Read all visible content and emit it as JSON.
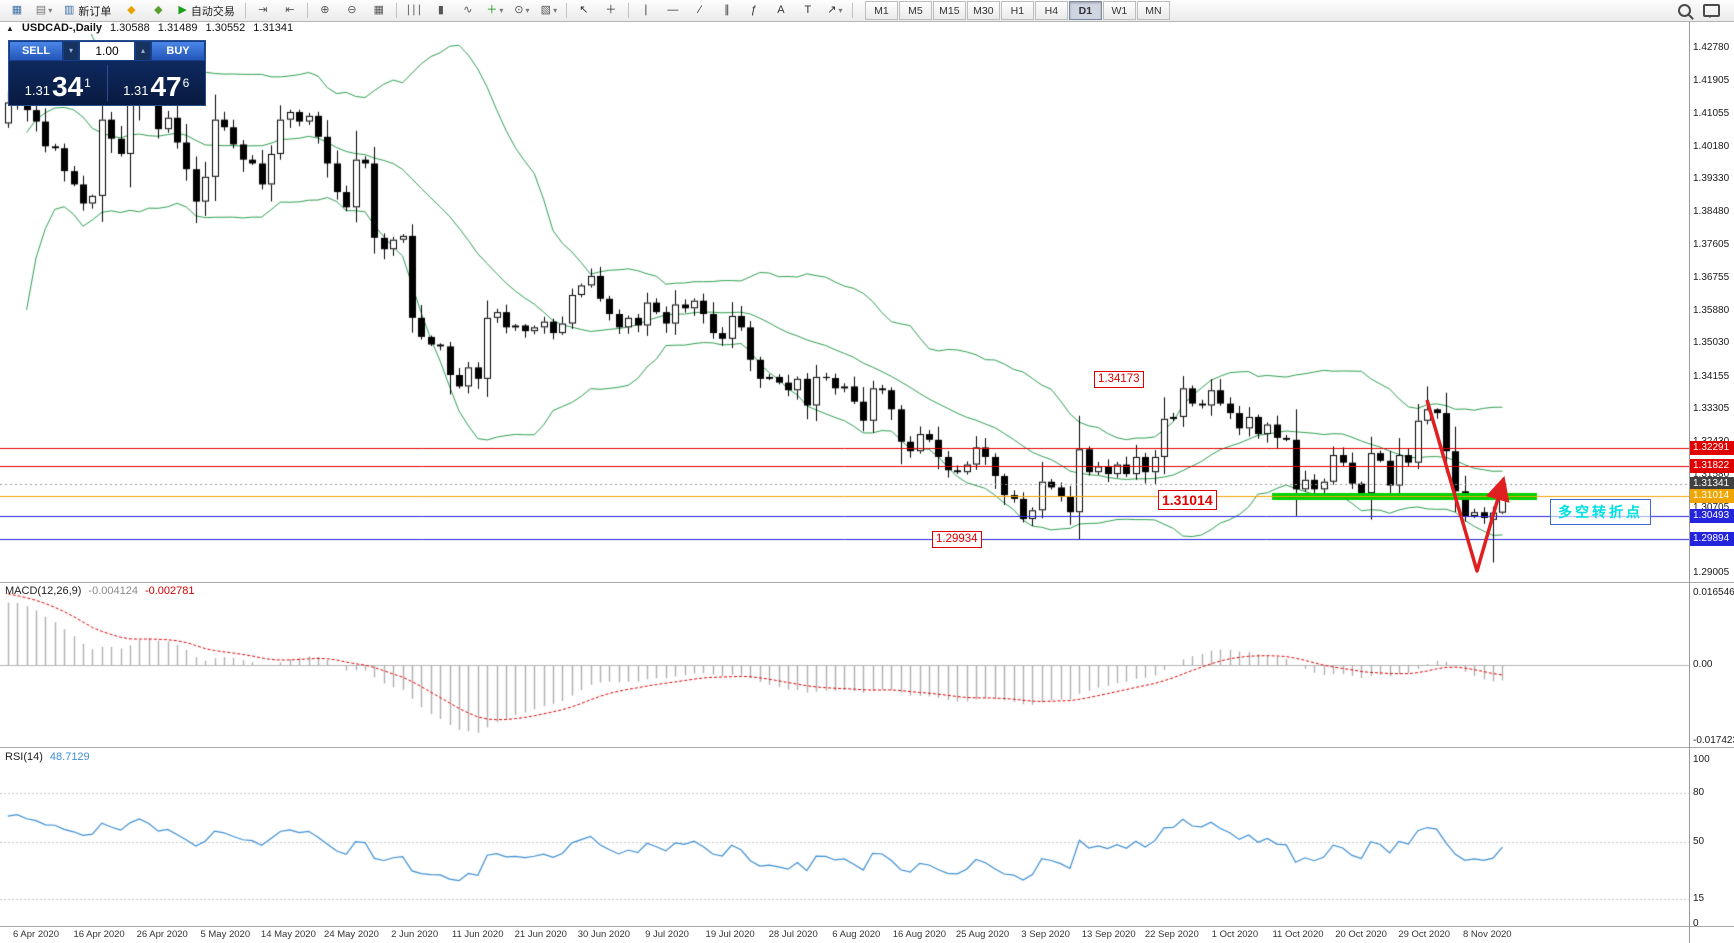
{
  "toolbar": {
    "dropdown_glyph": "▾",
    "items": [
      {
        "name": "new-chart-icon",
        "glyph": "▦",
        "color": "#3a6ea5"
      },
      {
        "name": "profiles-icon",
        "glyph": "▤",
        "color": "#777777",
        "dropdown": true
      },
      {
        "name": "new-order-button",
        "glyph": "▥",
        "label": "新订单",
        "color": "#3a6ea5"
      },
      {
        "name": "metaquotes-icon",
        "glyph": "◆",
        "color": "#e8a000"
      },
      {
        "name": "strategy-tester-icon",
        "glyph": "◆",
        "color": "#5aa02c"
      },
      {
        "name": "autotrading-button",
        "glyph": "▶",
        "label": "自动交易",
        "color": "#18a018"
      },
      {
        "sep": true
      },
      {
        "name": "autoscroll-icon",
        "glyph": "⇥",
        "color": "#555555"
      },
      {
        "name": "chart-shift-icon",
        "glyph": "⇤",
        "color": "#555555"
      },
      {
        "sep": true
      },
      {
        "name": "zoom-in-icon",
        "glyph": "⊕",
        "color": "#555555"
      },
      {
        "name": "zoom-out-icon",
        "glyph": "⊖",
        "color": "#555555"
      },
      {
        "name": "tile-windows-icon",
        "glyph": "▦",
        "color": "#555555"
      },
      {
        "sep": true
      },
      {
        "name": "bar-chart-type-icon",
        "glyph": "∣∣∣",
        "color": "#555555"
      },
      {
        "name": "candlestick-type-icon",
        "glyph": "▮",
        "color": "#555555"
      },
      {
        "name": "line-chart-type-icon",
        "glyph": "∿",
        "color": "#555555"
      },
      {
        "name": "indicators-button",
        "glyph": "＋",
        "color": "#0f8f0f",
        "dropdown": true
      },
      {
        "name": "periods-button",
        "glyph": "⊙",
        "color": "#555555",
        "dropdown": true
      },
      {
        "name": "templates-button",
        "glyph": "▧",
        "color": "#555555",
        "dropdown": true
      },
      {
        "sep": true
      },
      {
        "name": "cursor-icon",
        "glyph": "↖",
        "color": "#333333"
      },
      {
        "name": "crosshair-icon",
        "glyph": "＋",
        "color": "#333333"
      },
      {
        "sep": true
      },
      {
        "name": "vertical-line-icon",
        "glyph": "∣",
        "color": "#333333"
      },
      {
        "name": "horizontal-line-icon",
        "glyph": "—",
        "color": "#333333"
      },
      {
        "name": "trendline-icon",
        "glyph": "∕",
        "color": "#333333"
      },
      {
        "name": "channel-icon",
        "glyph": "∥",
        "color": "#333333"
      },
      {
        "name": "fibonacci-icon",
        "glyph": "ƒ",
        "color": "#333333"
      },
      {
        "name": "text-icon",
        "glyph": "A",
        "color": "#333333"
      },
      {
        "name": "label-icon",
        "glyph": "T",
        "color": "#333333"
      },
      {
        "name": "arrows-tool-icon",
        "glyph": "↗",
        "color": "#333333",
        "dropdown": true
      },
      {
        "sep": true
      }
    ],
    "timeframes": [
      "M1",
      "M5",
      "M15",
      "M30",
      "H1",
      "H4",
      "D1",
      "W1",
      "MN"
    ],
    "active_timeframe": "D1"
  },
  "chart_header": {
    "triangle": "▲",
    "symbol": "USDCAD-,Daily",
    "open": "1.30588",
    "high": "1.31489",
    "low": "1.30552",
    "close": "1.31341"
  },
  "one_click": {
    "sell_label": "SELL",
    "buy_label": "BUY",
    "volume": "1.00",
    "spin_down": "▾",
    "spin_up": "▴",
    "bid_prefix": "1.31",
    "bid_big": "34",
    "bid_sup": "1",
    "ask_prefix": "1.31",
    "ask_big": "47",
    "ask_sup": "6"
  },
  "price_axis": {
    "labels": [
      "1.42780",
      "1.41905",
      "1.41055",
      "1.40180",
      "1.39330",
      "1.38480",
      "1.37605",
      "1.36755",
      "1.35880",
      "1.35030",
      "1.34155",
      "1.33305",
      "1.32430",
      "1.31580",
      "1.30705",
      "1.29855",
      "1.29005"
    ]
  },
  "hlines": [
    {
      "value": "1.32291",
      "price": 1.32291,
      "color": "#e00000",
      "style": "solid"
    },
    {
      "value": "1.31822",
      "price": 1.31822,
      "color": "#e00000",
      "style": "solid"
    },
    {
      "value": "1.31341",
      "price": 1.31341,
      "color": "#404040",
      "style": "current"
    },
    {
      "value": "1.31014",
      "price": 1.31014,
      "color": "#f0a500",
      "style": "solid"
    },
    {
      "value": "1.30493",
      "price": 1.30493,
      "color": "#2424dd",
      "style": "solid"
    },
    {
      "value": "1.29894",
      "price": 1.29894,
      "color": "#2424dd",
      "style": "solid"
    }
  ],
  "annotations": {
    "high_label": "1.34173",
    "support_label": "1.31014",
    "low_label": "1.29934",
    "turning_point_label": "多空转折点",
    "green_zone_price": 1.31014,
    "arrow_color": "#e02020",
    "green_color": "#00d000",
    "cyan_color": "#00e0e0"
  },
  "macd": {
    "title": "MACD(12,26,9)",
    "value_main": "-0.004124",
    "value_signal": "-0.002781",
    "axis_max": "0.016546",
    "axis_zero": "0.00",
    "axis_min": "-0.017423"
  },
  "rsi": {
    "title": "RSI(14)",
    "value": "48.7129",
    "levels": [
      "100",
      "80",
      "50",
      "15",
      "0"
    ]
  },
  "dates": [
    "6 Apr 2020",
    "16 Apr 2020",
    "26 Apr 2020",
    "5 May 2020",
    "14 May 2020",
    "24 May 2020",
    "2 Jun 2020",
    "11 Jun 2020",
    "21 Jun 2020",
    "30 Jun 2020",
    "9 Jul 2020",
    "19 Jul 2020",
    "28 Jul 2020",
    "6 Aug 2020",
    "16 Aug 2020",
    "25 Aug 2020",
    "3 Sep 2020",
    "13 Sep 2020",
    "22 Sep 2020",
    "1 Oct 2020",
    "11 Oct 2020",
    "20 Oct 2020",
    "29 Oct 2020",
    "8 Nov 2020"
  ],
  "chart_data": {
    "type": "candlestick",
    "symbol": "USDCAD",
    "timeframe": "Daily",
    "indicators": [
      "Bollinger Bands",
      "MACD(12,26,9)",
      "RSI(14)"
    ],
    "ylim": [
      1.29005,
      1.4278
    ],
    "render_start": 20,
    "colors": {
      "bands": "#2f9e52",
      "candle_up": "#ffffff",
      "candle_down": "#000000",
      "wick": "#000000",
      "macd_hist": "#b0b0b0",
      "macd_signal": "#e00000",
      "rsi_line": "#3f8fd4",
      "rsi_levels": "#c8c8c8"
    },
    "closes": [
      1.342,
      1.365,
      1.377,
      1.392,
      1.405,
      1.425,
      1.448,
      1.433,
      1.421,
      1.409,
      1.398,
      1.417,
      1.425,
      1.409,
      1.401,
      1.395,
      1.408,
      1.4135,
      1.418,
      1.4115,
      1.4085,
      1.402,
      1.4015,
      1.3955,
      1.392,
      1.387,
      1.389,
      1.409,
      1.404,
      1.4,
      1.4135,
      1.4215,
      1.416,
      1.4065,
      1.4095,
      1.403,
      1.396,
      1.3875,
      1.394,
      1.409,
      1.407,
      1.4025,
      1.3985,
      1.3975,
      1.392,
      1.4,
      1.409,
      1.411,
      1.4085,
      1.41,
      1.4045,
      1.3975,
      1.39,
      1.386,
      1.3985,
      1.3975,
      1.378,
      1.375,
      1.3775,
      1.3785,
      1.357,
      1.352,
      1.35,
      1.3495,
      1.342,
      1.339,
      1.344,
      1.341,
      1.357,
      1.3585,
      1.3545,
      1.355,
      1.3535,
      1.3545,
      1.356,
      1.353,
      1.3555,
      1.363,
      1.3655,
      1.368,
      1.362,
      1.358,
      1.3545,
      1.357,
      1.355,
      1.361,
      1.3585,
      1.3555,
      1.3605,
      1.3595,
      1.3615,
      1.358,
      1.353,
      1.3515,
      1.3575,
      1.3545,
      1.346,
      1.341,
      1.3415,
      1.34,
      1.338,
      1.341,
      1.334,
      1.3415,
      1.3412,
      1.3385,
      1.339,
      1.335,
      1.33,
      1.3385,
      1.338,
      1.333,
      1.3245,
      1.322,
      1.3265,
      1.325,
      1.3205,
      1.317,
      1.3165,
      1.3185,
      1.323,
      1.3205,
      1.3155,
      1.3105,
      1.3095,
      1.3042,
      1.3065,
      1.314,
      1.3125,
      1.31,
      1.306,
      1.3225,
      1.3165,
      1.318,
      1.316,
      1.3185,
      1.316,
      1.3205,
      1.3165,
      1.3205,
      1.3305,
      1.331,
      1.3385,
      1.3345,
      1.334,
      1.338,
      1.3345,
      1.332,
      1.328,
      1.331,
      1.3265,
      1.329,
      1.3255,
      1.325,
      1.312,
      1.3145,
      1.312,
      1.314,
      1.321,
      1.319,
      1.3135,
      1.311,
      1.3215,
      1.3195,
      1.313,
      1.321,
      1.319,
      1.33,
      1.333,
      1.332,
      1.322,
      1.3115,
      1.305,
      1.306,
      1.3045,
      1.3059,
      1.31341
    ],
    "overrides": {
      "122": {
        "high": 1.34173
      },
      "148": {
        "high": 1.339
      },
      "155": {
        "open": 1.304,
        "high": 1.3075,
        "low": 1.2928,
        "close": 1.3059
      },
      "156": {
        "open": 1.30588,
        "high": 1.31489,
        "low": 1.30552,
        "close": 1.31341
      }
    }
  }
}
